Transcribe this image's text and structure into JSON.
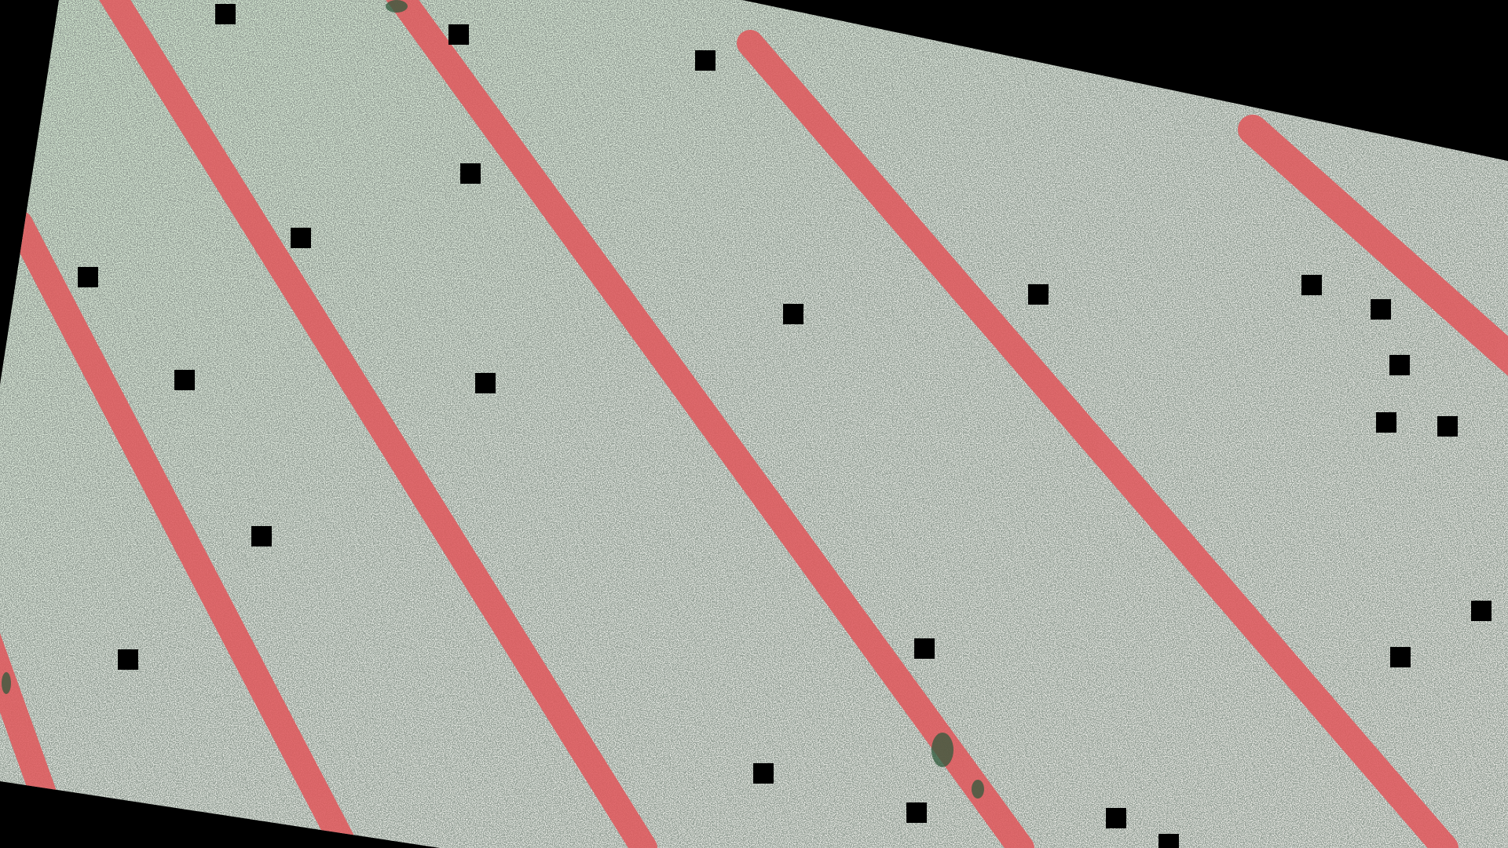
{
  "colors": {
    "background": "#000000",
    "surface_light": "#e4e7e1",
    "surface_tint": "#d3ead2",
    "speckle": "#4d5a50",
    "stripe": "#e05a5e",
    "stripe_dark": "#b83f46",
    "marker": "#000000",
    "stain": "#2f5a3c"
  },
  "scene": {
    "stripe_count": 7,
    "marker_count": 31,
    "marker_icon": "black-square-marker-icon",
    "stripe_icon": "red-diagonal-stripe-icon"
  }
}
